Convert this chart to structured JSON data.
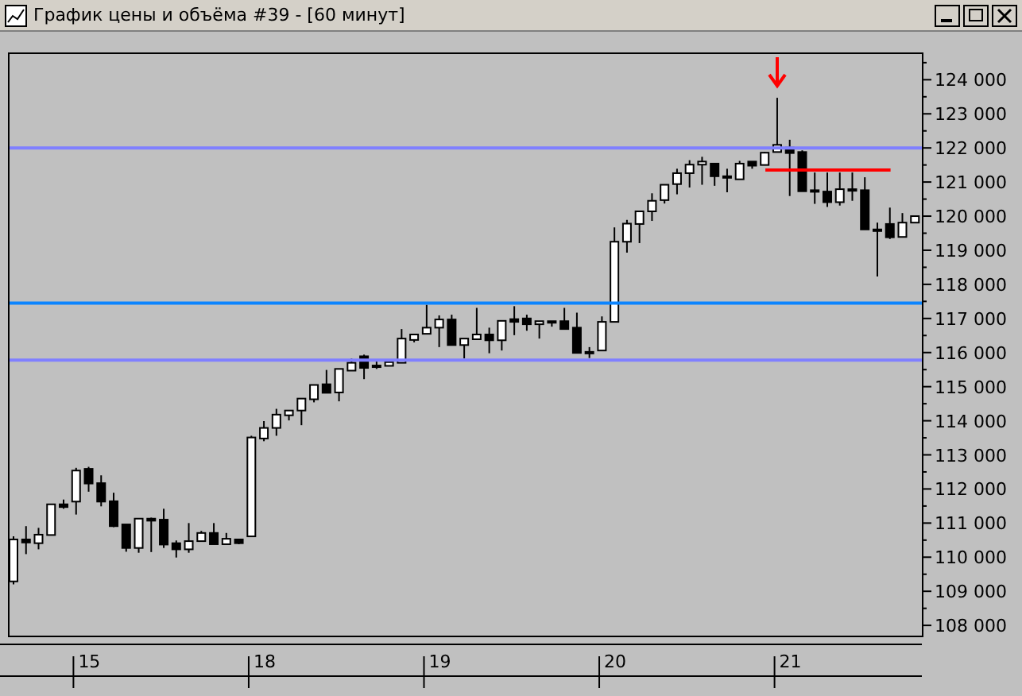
{
  "chart_data": {
    "type": "candlestick",
    "title": "График цены и объёма #39 - [60 минут]",
    "categories": [
      null,
      null,
      null,
      null,
      null,
      null,
      "15",
      null,
      null,
      null,
      null,
      null,
      null,
      null,
      null,
      null,
      null,
      null,
      null,
      null,
      "18",
      null,
      null,
      null,
      null,
      null,
      null,
      null,
      null,
      null,
      null,
      null,
      null,
      null,
      "19",
      null,
      null,
      null,
      null,
      null,
      null,
      null,
      null,
      null,
      null,
      null,
      null,
      null,
      "20",
      null,
      null,
      null,
      null,
      null,
      null,
      null,
      null,
      null,
      null,
      null,
      null,
      null,
      "21",
      null,
      null,
      null,
      null,
      null,
      null,
      null,
      null,
      null,
      null
    ],
    "ohlc": [
      [
        109290,
        110610,
        109200,
        110520
      ],
      [
        110520,
        110910,
        110090,
        110430
      ],
      [
        110410,
        110860,
        110230,
        110660
      ],
      [
        110650,
        111550,
        110650,
        111550
      ],
      [
        111550,
        111690,
        111420,
        111470
      ],
      [
        111630,
        112620,
        111250,
        112540
      ],
      [
        112590,
        112650,
        111920,
        112160
      ],
      [
        112170,
        112400,
        111490,
        111630
      ],
      [
        111640,
        111890,
        110880,
        110910
      ],
      [
        110960,
        110960,
        110160,
        110270
      ],
      [
        110270,
        111130,
        110130,
        111130
      ],
      [
        111130,
        111160,
        110150,
        111070
      ],
      [
        111100,
        111420,
        110270,
        110370
      ],
      [
        110410,
        110490,
        109990,
        110230
      ],
      [
        110230,
        111000,
        110130,
        110470
      ],
      [
        110470,
        110770,
        110470,
        110710
      ],
      [
        110710,
        111000,
        110380,
        110380
      ],
      [
        110380,
        110710,
        110380,
        110540
      ],
      [
        110520,
        110520,
        110380,
        110410
      ],
      [
        110610,
        113560,
        110610,
        113510
      ],
      [
        113480,
        113990,
        113400,
        113790
      ],
      [
        113790,
        114350,
        113560,
        114180
      ],
      [
        114160,
        114300,
        114010,
        114300
      ],
      [
        114300,
        114650,
        113870,
        114650
      ],
      [
        114630,
        115050,
        114540,
        115050
      ],
      [
        115070,
        115490,
        114820,
        114820
      ],
      [
        114830,
        115520,
        114570,
        115520
      ],
      [
        115470,
        115830,
        115470,
        115700
      ],
      [
        115890,
        115940,
        115220,
        115550
      ],
      [
        115610,
        115740,
        115520,
        115620
      ],
      [
        115610,
        115720,
        115610,
        115720
      ],
      [
        115700,
        116690,
        115700,
        116410
      ],
      [
        116370,
        116530,
        116300,
        116530
      ],
      [
        116550,
        117400,
        116550,
        116730
      ],
      [
        116730,
        117090,
        116160,
        116970
      ],
      [
        116970,
        117110,
        116220,
        116220
      ],
      [
        116220,
        116410,
        115830,
        116410
      ],
      [
        116390,
        117310,
        116390,
        116530
      ],
      [
        116530,
        116730,
        115980,
        116360
      ],
      [
        116360,
        116930,
        116060,
        116930
      ],
      [
        116980,
        117360,
        116510,
        116900
      ],
      [
        117000,
        117110,
        116640,
        116830
      ],
      [
        116830,
        116920,
        116410,
        116920
      ],
      [
        116920,
        116920,
        116760,
        116900
      ],
      [
        116920,
        117310,
        116690,
        116690
      ],
      [
        116730,
        117170,
        115990,
        115990
      ],
      [
        116020,
        116160,
        115840,
        116000
      ],
      [
        116060,
        117060,
        116060,
        116900
      ],
      [
        116900,
        119670,
        116900,
        119250
      ],
      [
        119250,
        119890,
        118930,
        119780
      ],
      [
        119770,
        120140,
        119210,
        120140
      ],
      [
        120140,
        120670,
        119860,
        120450
      ],
      [
        120470,
        120920,
        120370,
        120920
      ],
      [
        120940,
        121390,
        120640,
        121260
      ],
      [
        121260,
        121640,
        120840,
        121510
      ],
      [
        121510,
        121740,
        120920,
        121600
      ],
      [
        121540,
        121540,
        120890,
        121170
      ],
      [
        121170,
        121390,
        120700,
        121140
      ],
      [
        121080,
        121620,
        121080,
        121540
      ],
      [
        121600,
        121600,
        121390,
        121480
      ],
      [
        121500,
        121880,
        121500,
        121860
      ],
      [
        121880,
        123470,
        121880,
        122090
      ],
      [
        122010,
        122240,
        120590,
        121850
      ],
      [
        121880,
        121930,
        120730,
        120730
      ],
      [
        120760,
        121280,
        120360,
        120720
      ],
      [
        120720,
        121280,
        120270,
        120410
      ],
      [
        120410,
        121280,
        120310,
        120790
      ],
      [
        120790,
        121280,
        120450,
        120760
      ],
      [
        120760,
        121140,
        119610,
        119610
      ],
      [
        119610,
        119810,
        118230,
        119580
      ],
      [
        119770,
        120250,
        119330,
        119380
      ],
      [
        119390,
        120090,
        119390,
        119810
      ],
      [
        119810,
        120000,
        119810,
        120000
      ]
    ],
    "series": [
      {
        "type": "line",
        "color": "#ff0000",
        "values": [
          null,
          null,
          null,
          null,
          null,
          null,
          null,
          null,
          null,
          null,
          null,
          null,
          null,
          null,
          null,
          null,
          null,
          null,
          null,
          null,
          null,
          null,
          null,
          null,
          null,
          null,
          null,
          null,
          null,
          null,
          null,
          null,
          null,
          null,
          null,
          null,
          null,
          null,
          null,
          null,
          null,
          null,
          null,
          null,
          null,
          null,
          null,
          null,
          null,
          null,
          null,
          null,
          null,
          null,
          null,
          null,
          null,
          null,
          null,
          null,
          121350,
          121350,
          121350,
          121350,
          121350,
          121350,
          121350,
          121350,
          121350,
          121350,
          121350,
          null,
          null
        ]
      }
    ],
    "ref_lines": [
      {
        "axis": "y",
        "value": 122000,
        "color": "#8080ff"
      },
      {
        "axis": "y",
        "value": 117450,
        "color": "#0a84ff"
      },
      {
        "axis": "y",
        "value": 115780,
        "color": "#8080ff"
      }
    ],
    "ylim": [
      107700,
      124800
    ],
    "yticks": [
      {
        "value": 108000,
        "label": "108 000"
      },
      {
        "value": 108500,
        "label": null
      },
      {
        "value": 109000,
        "label": "109 000"
      },
      {
        "value": 109500,
        "label": null
      },
      {
        "value": 110000,
        "label": "110 000"
      },
      {
        "value": 110500,
        "label": null
      },
      {
        "value": 111000,
        "label": "111 000"
      },
      {
        "value": 111500,
        "label": null
      },
      {
        "value": 112000,
        "label": "112 000"
      },
      {
        "value": 112500,
        "label": null
      },
      {
        "value": 113000,
        "label": "113 000"
      },
      {
        "value": 113500,
        "label": null
      },
      {
        "value": 114000,
        "label": "114 000"
      },
      {
        "value": 114500,
        "label": null
      },
      {
        "value": 115000,
        "label": "115 000"
      },
      {
        "value": 115500,
        "label": null
      },
      {
        "value": 116000,
        "label": "116 000"
      },
      {
        "value": 116500,
        "label": null
      },
      {
        "value": 117000,
        "label": "117 000"
      },
      {
        "value": 117500,
        "label": null
      },
      {
        "value": 118000,
        "label": "118 000"
      },
      {
        "value": 118500,
        "label": null
      },
      {
        "value": 119000,
        "label": "119 000"
      },
      {
        "value": 119500,
        "label": null
      },
      {
        "value": 120000,
        "label": "120 000"
      },
      {
        "value": 120500,
        "label": null
      },
      {
        "value": 121000,
        "label": "121 000"
      },
      {
        "value": 121500,
        "label": null
      },
      {
        "value": 122000,
        "label": "122 000"
      },
      {
        "value": 122500,
        "label": null
      },
      {
        "value": 123000,
        "label": "123 000"
      },
      {
        "value": 123500,
        "label": null
      },
      {
        "value": 124000,
        "label": "124 000"
      },
      {
        "value": 124500,
        "label": null
      }
    ]
  }
}
